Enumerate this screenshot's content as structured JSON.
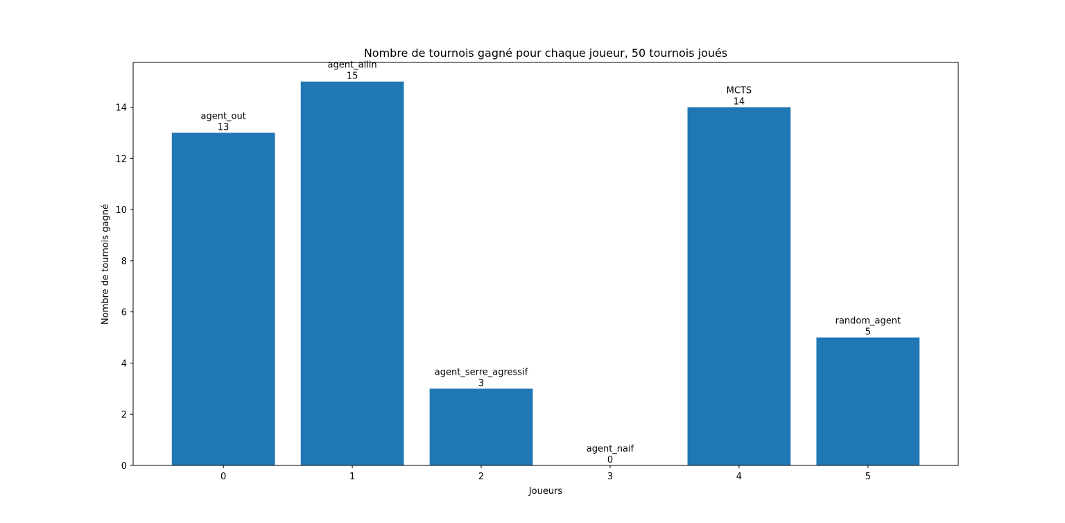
{
  "chart_data": {
    "type": "bar",
    "title": "Nombre de tournois gagné pour chaque joueur, 50 tournois joués",
    "xlabel": "Joueurs",
    "ylabel": "Nombre de tournois gagné",
    "categories": [
      "0",
      "1",
      "2",
      "3",
      "4",
      "5"
    ],
    "bar_names": [
      "agent_out",
      "agent_allin",
      "agent_serre_agressif",
      "agent_naif",
      "MCTS",
      "random_agent"
    ],
    "values": [
      13,
      15,
      3,
      0,
      14,
      5
    ],
    "ylim": [
      0,
      15.75
    ],
    "yticks": [
      0,
      2,
      4,
      6,
      8,
      10,
      12,
      14
    ],
    "grid": false,
    "bar_color": "#1f77b4"
  }
}
